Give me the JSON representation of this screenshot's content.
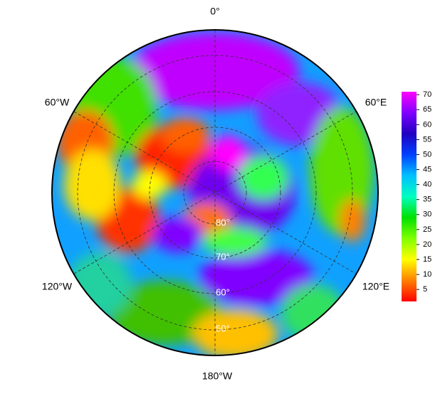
{
  "map": {
    "longitude_labels": {
      "top": "0°",
      "upper_left": "60°W",
      "upper_right": "60°E",
      "lower_left": "120°W",
      "lower_right": "120°E",
      "bottom": "180°W"
    },
    "latitude_labels": [
      "80°",
      "70°",
      "60°",
      "50°"
    ]
  },
  "colorbar": {
    "range": [
      1,
      71
    ],
    "ticks": [
      5,
      10,
      15,
      20,
      25,
      30,
      35,
      40,
      45,
      50,
      55,
      60,
      65,
      70
    ],
    "colors": [
      "#ff0000",
      "#ff8000",
      "#ffff00",
      "#80ff00",
      "#00e000",
      "#00ffc0",
      "#00c0ff",
      "#0040ff",
      "#2000c0",
      "#8000ff",
      "#ff00ff"
    ]
  }
}
